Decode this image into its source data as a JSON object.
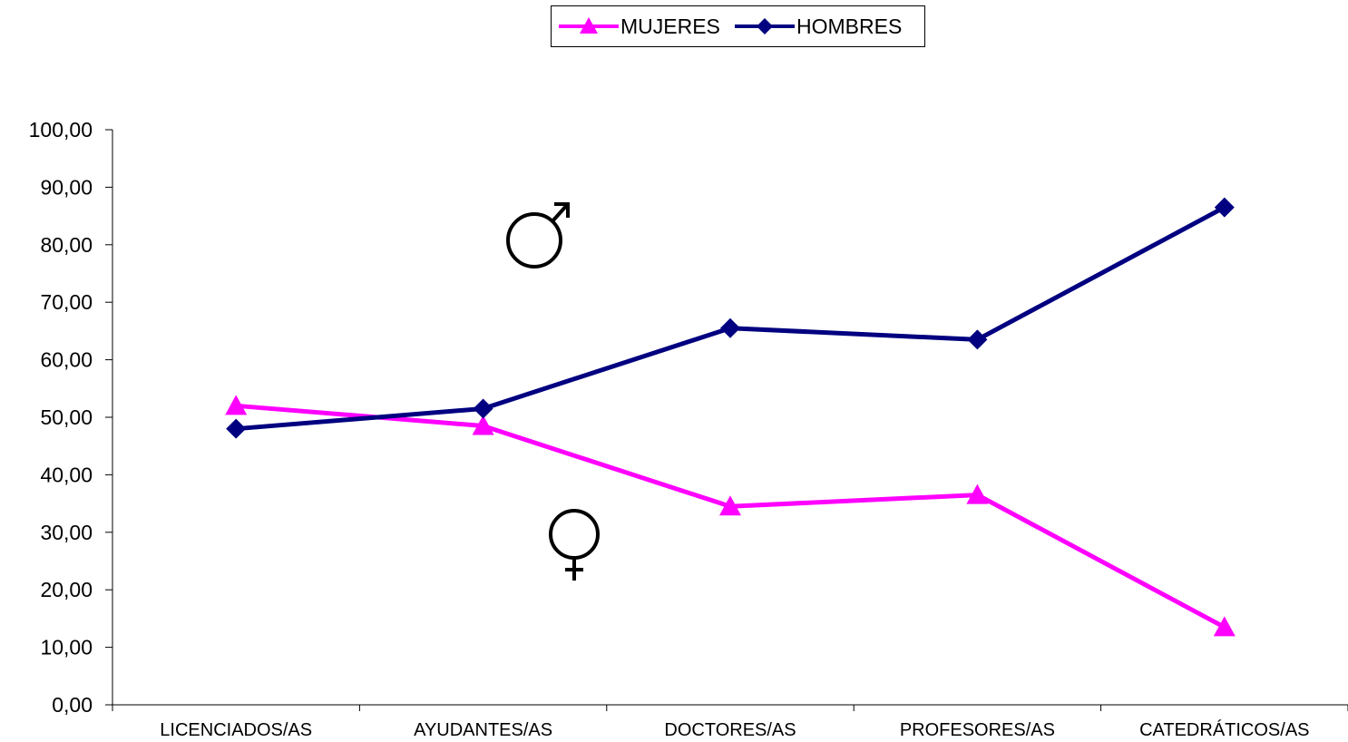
{
  "chart_data": {
    "type": "line",
    "categories": [
      "LICENCIADOS/AS",
      "AYUDANTES/AS",
      "DOCTORES/AS",
      "PROFESORES/AS",
      "CATEDRÁTICOS/AS"
    ],
    "series": [
      {
        "name": "MUJERES",
        "color": "#FF00FF",
        "marker": "triangle",
        "values": [
          52.0,
          48.5,
          34.5,
          36.5,
          13.5
        ]
      },
      {
        "name": "HOMBRES",
        "color": "#000080",
        "marker": "diamond",
        "values": [
          48.0,
          51.5,
          65.5,
          63.5,
          86.5
        ]
      }
    ],
    "ylim": [
      0,
      100
    ],
    "yticks": [
      "0,00",
      "10,00",
      "20,00",
      "30,00",
      "40,00",
      "50,00",
      "60,00",
      "70,00",
      "80,00",
      "90,00",
      "100,00"
    ],
    "grid": false,
    "legend_position": "top-center",
    "annotations": [
      {
        "symbol": "♂",
        "name": "male-symbol"
      },
      {
        "symbol": "♀",
        "name": "female-symbol"
      }
    ]
  }
}
